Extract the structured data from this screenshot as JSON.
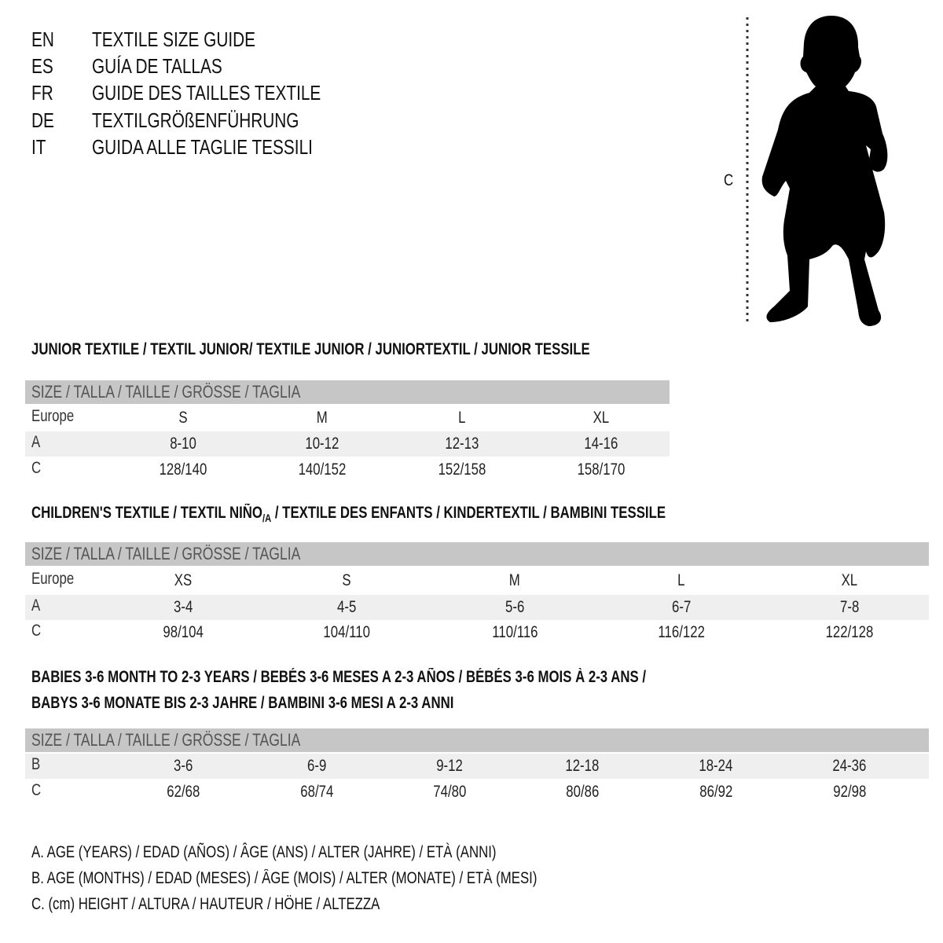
{
  "header": {
    "lines": [
      {
        "code": "EN",
        "text": "TEXTILE SIZE GUIDE"
      },
      {
        "code": "ES",
        "text": "GUÍA DE TALLAS"
      },
      {
        "code": "FR",
        "text": "GUIDE DES TAILLES TEXTILE"
      },
      {
        "code": "DE",
        "text": "TEXTILGRÖßENFÜHRUNG"
      },
      {
        "code": "IT",
        "text": "GUIDA ALLE TAGLIE TESSILI"
      }
    ]
  },
  "figure": {
    "label": "C",
    "icon": "child-silhouette-icon"
  },
  "junior": {
    "title": "JUNIOR TEXTILE / TEXTIL JUNIOR/ TEXTILE JUNIOR / JUNIORTEXTIL / JUNIOR TESSILE",
    "header": "SIZE / TALLA / TAILLE / GRÖSSE / TAGLIA",
    "rows": [
      {
        "label": "Europe",
        "values": [
          "S",
          "M",
          "L",
          "XL"
        ]
      },
      {
        "label": "A",
        "values": [
          "8-10",
          "10-12",
          "12-13",
          "14-16"
        ]
      },
      {
        "label": "C",
        "values": [
          "128/140",
          "140/152",
          "152/158",
          "158/170"
        ]
      }
    ]
  },
  "children": {
    "title_pre": "CHILDREN'S TEXTILE / TEXTIL NIÑO",
    "title_sub": "/A",
    "title_post": " / TEXTILE DES ENFANTS / KINDERTEXTIL / BAMBINI TESSILE",
    "header": "SIZE / TALLA / TAILLE / GRÖSSE / TAGLIA",
    "rows": [
      {
        "label": "Europe",
        "values": [
          "XS",
          "S",
          "M",
          "L",
          "XL"
        ]
      },
      {
        "label": "A",
        "values": [
          "3-4",
          "4-5",
          "5-6",
          "6-7",
          "7-8"
        ]
      },
      {
        "label": "C",
        "values": [
          "98/104",
          "104/110",
          "110/116",
          "116/122",
          "122/128"
        ]
      }
    ]
  },
  "babies": {
    "title_line1": "BABIES 3-6 MONTH TO 2-3 YEARS / BEBÉS 3-6 MESES A 2-3 AÑOS / BÉBÉS 3-6 MOIS À 2-3 ANS /",
    "title_line2": "BABYS 3-6 MONATE BIS 2-3 JAHRE / BAMBINI 3-6 MESI A 2-3 ANNI",
    "header": "SIZE / TALLA / TAILLE / GRÖSSE / TAGLIA",
    "rows": [
      {
        "label": "B",
        "values": [
          "3-6",
          "6-9",
          "9-12",
          "12-18",
          "18-24",
          "24-36"
        ]
      },
      {
        "label": "C",
        "values": [
          "62/68",
          "68/74",
          "74/80",
          "80/86",
          "86/92",
          "92/98"
        ]
      }
    ]
  },
  "footnotes": [
    "A. AGE (YEARS) / EDAD (AÑOS) / ÂGE (ANS) / ALTER (JAHRE) / ETÀ (ANNI)",
    "B. AGE (MONTHS) / EDAD (MESES) / ÂGE (MOIS) / ALTER (MONATE) / ETÀ (MESI)",
    "C. (cm) HEIGHT / ALTURA / HAUTEUR / HÖHE / ALTEZZA"
  ]
}
